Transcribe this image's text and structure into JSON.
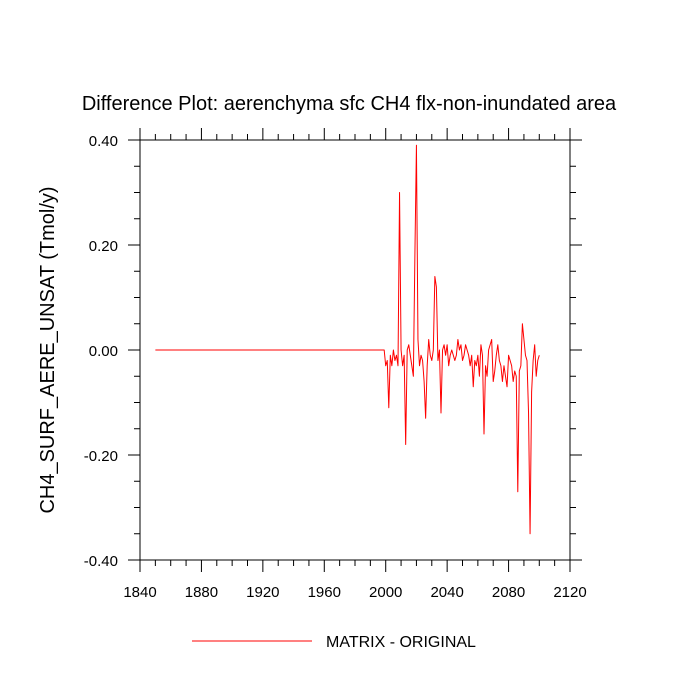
{
  "chart_data": {
    "type": "line",
    "title": "Difference Plot: aerenchyma sfc CH4 flx-non-inundated area",
    "xlabel": "",
    "ylabel": "CH4_SURF_AERE_UNSAT  (Tmol/y)",
    "xlim": [
      1840,
      2120
    ],
    "ylim": [
      -0.4,
      0.4
    ],
    "x_ticks": [
      1840,
      1880,
      1920,
      1960,
      2000,
      2040,
      2080,
      2120
    ],
    "x_tick_labels": [
      "1840",
      "1880",
      "1920",
      "1960",
      "2000",
      "2040",
      "2080",
      "2120"
    ],
    "y_ticks": [
      -0.4,
      -0.2,
      0.0,
      0.2,
      0.4
    ],
    "y_tick_labels": [
      "-0.40",
      "-0.20",
      "0.00",
      "0.20",
      "0.40"
    ],
    "grid": false,
    "legend_position": "bottom-center",
    "series": [
      {
        "name": "MATRIX - ORIGINAL",
        "color": "#ff0000",
        "x": [
          1850,
          1900,
          1950,
          1999,
          2000,
          2001,
          2002,
          2003,
          2004,
          2005,
          2006,
          2007,
          2008,
          2009,
          2010,
          2011,
          2012,
          2013,
          2014,
          2015,
          2016,
          2017,
          2018,
          2019,
          2020,
          2021,
          2022,
          2023,
          2024,
          2025,
          2026,
          2027,
          2028,
          2029,
          2030,
          2031,
          2032,
          2033,
          2034,
          2035,
          2036,
          2037,
          2038,
          2039,
          2040,
          2041,
          2042,
          2043,
          2044,
          2045,
          2046,
          2047,
          2048,
          2049,
          2050,
          2051,
          2052,
          2053,
          2054,
          2055,
          2056,
          2057,
          2058,
          2059,
          2060,
          2061,
          2062,
          2063,
          2064,
          2065,
          2066,
          2067,
          2068,
          2069,
          2070,
          2071,
          2072,
          2073,
          2074,
          2075,
          2076,
          2077,
          2078,
          2079,
          2080,
          2081,
          2082,
          2083,
          2084,
          2085,
          2086,
          2087,
          2088,
          2089,
          2090,
          2091,
          2092,
          2093,
          2094,
          2095,
          2096,
          2097,
          2098,
          2099,
          2100
        ],
        "values": [
          0.0,
          0.0,
          0.0,
          0.0,
          -0.03,
          -0.02,
          -0.11,
          -0.01,
          -0.03,
          0.0,
          -0.02,
          -0.01,
          -0.03,
          0.3,
          0.0,
          -0.03,
          -0.01,
          -0.18,
          0.0,
          0.01,
          -0.01,
          -0.03,
          -0.05,
          0.18,
          0.39,
          0.02,
          -0.03,
          -0.01,
          -0.02,
          -0.06,
          -0.13,
          -0.03,
          0.02,
          -0.01,
          -0.02,
          0.0,
          0.14,
          0.12,
          -0.02,
          0.0,
          -0.12,
          0.0,
          0.01,
          -0.01,
          0.01,
          -0.03,
          -0.01,
          0.0,
          -0.01,
          -0.02,
          -0.01,
          0.02,
          0.0,
          0.01,
          -0.02,
          -0.01,
          0.01,
          0.0,
          -0.01,
          -0.03,
          -0.01,
          -0.07,
          -0.02,
          -0.03,
          -0.01,
          -0.05,
          0.01,
          -0.01,
          -0.16,
          -0.03,
          -0.05,
          0.0,
          0.01,
          0.02,
          -0.06,
          -0.04,
          -0.01,
          0.01,
          -0.02,
          -0.03,
          -0.06,
          -0.03,
          -0.05,
          -0.07,
          -0.01,
          -0.02,
          -0.03,
          -0.06,
          -0.04,
          -0.05,
          -0.27,
          -0.04,
          -0.03,
          0.05,
          0.02,
          -0.01,
          -0.02,
          -0.12,
          -0.35,
          -0.08,
          -0.02,
          0.01,
          -0.05,
          -0.02,
          -0.01
        ]
      }
    ]
  }
}
